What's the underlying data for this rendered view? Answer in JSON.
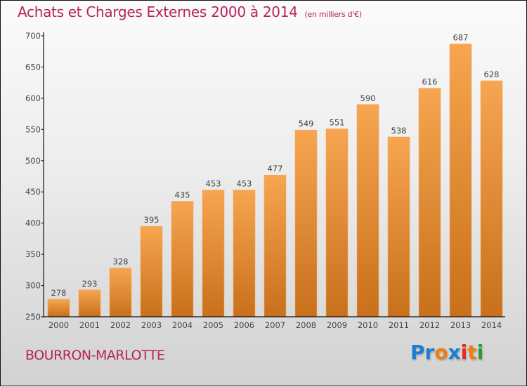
{
  "header": {
    "title": "Achats et Charges Externes 2000 à 2014",
    "unit": "(en milliers d'€)"
  },
  "footer": {
    "commune": "BOURRON-MARLOTTE",
    "logo": {
      "letters": [
        {
          "char": "P",
          "color": "#1a7fd4"
        },
        {
          "char": "r",
          "color": "#1a7fd4"
        },
        {
          "char": "o",
          "color": "#f07d10"
        },
        {
          "char": "x",
          "color": "#1a7fd4"
        },
        {
          "char": "i",
          "color": "#e8262a"
        },
        {
          "char": "t",
          "color": "#f07d10"
        },
        {
          "char": "i",
          "color": "#2a9a3a"
        }
      ]
    }
  },
  "colors": {
    "title": "#b5245e",
    "bar_top": "#f7a550",
    "bar_bottom": "#c8701c"
  },
  "chart_data": {
    "type": "bar",
    "title": "Achats et Charges Externes 2000 à 2014",
    "subtitle": "(en milliers d'€)",
    "xlabel": "",
    "ylabel": "",
    "categories": [
      "2000",
      "2001",
      "2002",
      "2003",
      "2004",
      "2005",
      "2006",
      "2007",
      "2008",
      "2009",
      "2010",
      "2011",
      "2012",
      "2013",
      "2014"
    ],
    "values": [
      278,
      293,
      328,
      395,
      435,
      453,
      453,
      477,
      549,
      551,
      590,
      538,
      616,
      687,
      628
    ],
    "ylim": [
      250,
      700
    ],
    "yticks": [
      250,
      300,
      350,
      400,
      450,
      500,
      550,
      600,
      650,
      700
    ],
    "grid": false,
    "legend": "none"
  }
}
